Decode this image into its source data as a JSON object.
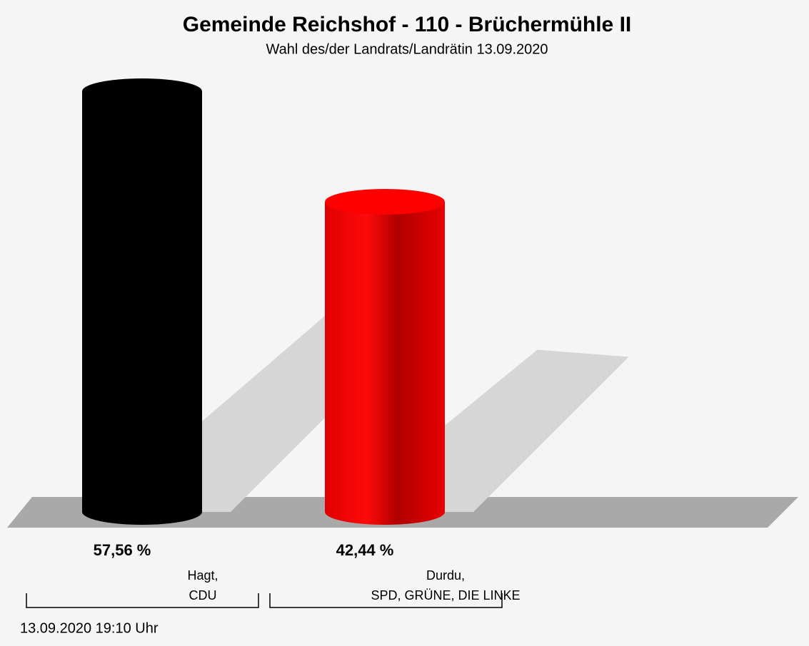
{
  "chart_data": {
    "type": "bar",
    "title": "Gemeinde Reichshof - 110 - Brüchermühle II",
    "subtitle": "Wahl des/der Landrats/Landrätin 13.09.2020",
    "categories": [
      [
        "Hagt,",
        "CDU"
      ],
      [
        "Durdu,",
        "SPD, GRÜNE, DIE LINKE"
      ]
    ],
    "series": [
      {
        "name": null,
        "colors": [
          "#000000",
          "#ff0000"
        ],
        "values": [
          57.56,
          42.44
        ],
        "value_labels": [
          "57,56 %",
          "42,44 %"
        ]
      }
    ],
    "footer": "13.09.2020 19:10 Uhr"
  }
}
